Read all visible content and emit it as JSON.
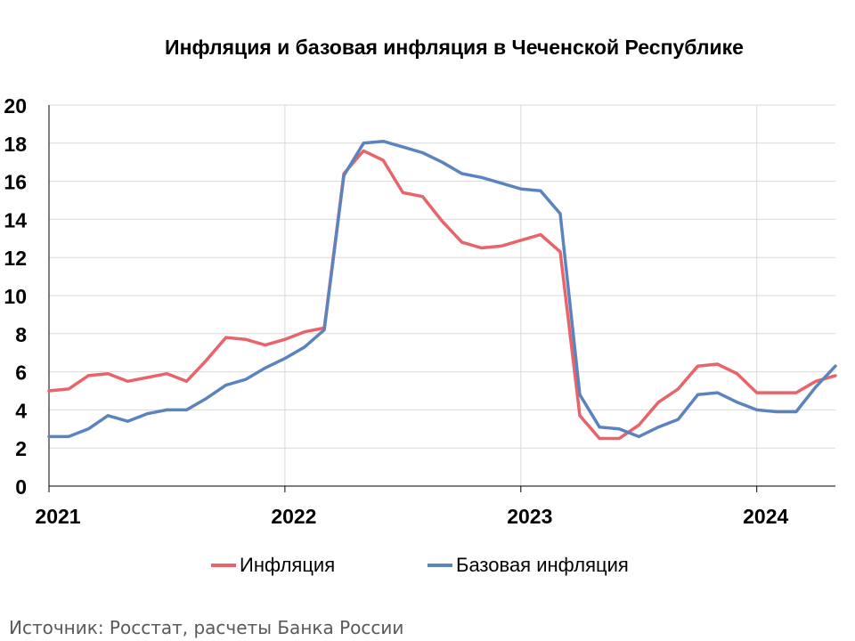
{
  "chart_data": {
    "type": "line",
    "title": "Инфляция и базовая инфляция в Чеченской Республике",
    "xlabel": "",
    "ylabel": "",
    "ylim": [
      0,
      20
    ],
    "yticks": [
      "0",
      "2",
      "4",
      "6",
      "8",
      "10",
      "12",
      "14",
      "16",
      "18",
      "20"
    ],
    "xticks": [
      "2021",
      "2022",
      "2023",
      "2024"
    ],
    "grid": true,
    "legend_position": "bottom",
    "x": [
      "2021-01",
      "2021-02",
      "2021-03",
      "2021-04",
      "2021-05",
      "2021-06",
      "2021-07",
      "2021-08",
      "2021-09",
      "2021-10",
      "2021-11",
      "2021-12",
      "2022-01",
      "2022-02",
      "2022-03",
      "2022-04",
      "2022-05",
      "2022-06",
      "2022-07",
      "2022-08",
      "2022-09",
      "2022-10",
      "2022-11",
      "2022-12",
      "2023-01",
      "2023-02",
      "2023-03",
      "2023-04",
      "2023-05",
      "2023-06",
      "2023-07",
      "2023-08",
      "2023-09",
      "2023-10",
      "2023-11",
      "2023-12",
      "2024-01",
      "2024-02",
      "2024-03",
      "2024-04",
      "2024-05"
    ],
    "series": [
      {
        "name": "Инфляция",
        "color": "#e8636a",
        "values": [
          5.0,
          5.1,
          5.8,
          5.9,
          5.5,
          5.7,
          5.9,
          5.5,
          6.6,
          7.8,
          7.7,
          7.4,
          7.7,
          8.1,
          8.3,
          16.4,
          17.6,
          17.1,
          15.4,
          15.2,
          13.9,
          12.8,
          12.5,
          12.6,
          12.9,
          13.2,
          12.3,
          3.7,
          2.5,
          2.5,
          3.2,
          4.4,
          5.1,
          6.3,
          6.4,
          5.9,
          4.9,
          4.9,
          4.9,
          5.5,
          5.8
        ]
      },
      {
        "name": "Базовая инфляция",
        "color": "#5b84bf",
        "values": [
          2.6,
          2.6,
          3.0,
          3.7,
          3.4,
          3.8,
          4.0,
          4.0,
          4.6,
          5.3,
          5.6,
          6.2,
          6.7,
          7.3,
          8.2,
          16.3,
          18.0,
          18.1,
          17.8,
          17.5,
          17.0,
          16.4,
          16.2,
          15.9,
          15.6,
          15.5,
          14.3,
          4.8,
          3.1,
          3.0,
          2.6,
          3.1,
          3.5,
          4.8,
          4.9,
          4.4,
          4.0,
          3.9,
          3.9,
          5.2,
          6.3
        ]
      }
    ]
  },
  "legend": {
    "item1": "Инфляция",
    "item2": "Базовая инфляция"
  },
  "source": "Источник: Росстат, расчеты Банка России"
}
